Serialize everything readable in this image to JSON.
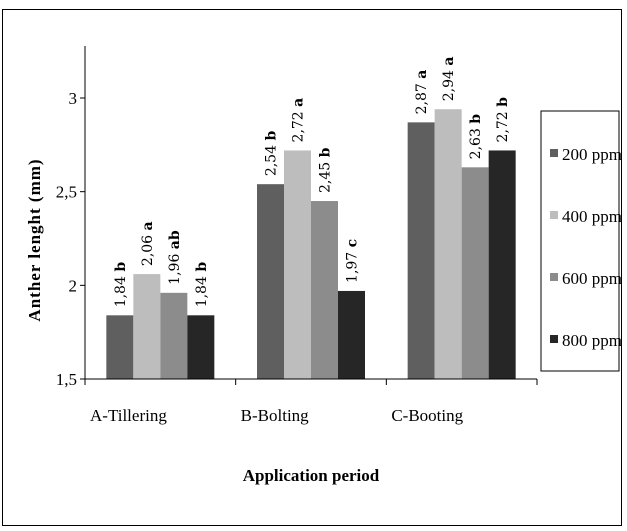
{
  "chart_data": {
    "type": "bar",
    "title": "",
    "xlabel": "Application period",
    "ylabel": "Anther lenght (mm)",
    "ylim": [
      1.5,
      3.2
    ],
    "yticks": [
      1.5,
      2,
      2.5,
      3
    ],
    "ytick_labels": [
      "1,5",
      "2",
      "2,5",
      "3"
    ],
    "grid": false,
    "legend_position": "right",
    "categories": [
      "A-Tillering",
      "B-Bolting",
      "C-Booting"
    ],
    "series": [
      {
        "name": "200 ppm",
        "color": "#5f5f5f",
        "values": [
          1.84,
          2.54,
          2.87
        ],
        "labels": [
          "1,84",
          "2,54",
          "2,87"
        ],
        "letters": [
          "b",
          "b",
          "a"
        ]
      },
      {
        "name": "400 ppm",
        "color": "#bdbdbd",
        "values": [
          2.06,
          2.72,
          2.94
        ],
        "labels": [
          "2,06",
          "2,72",
          "2,94"
        ],
        "letters": [
          "a",
          "a",
          "a"
        ]
      },
      {
        "name": "600 ppm",
        "color": "#8c8c8c",
        "values": [
          1.96,
          2.45,
          2.63
        ],
        "labels": [
          "1,96",
          "2,45",
          "2,63"
        ],
        "letters": [
          "ab",
          "b",
          "b"
        ]
      },
      {
        "name": "800 ppm",
        "color": "#262626",
        "values": [
          1.84,
          1.97,
          2.72
        ],
        "labels": [
          "1,84",
          "1,97",
          "2,72"
        ],
        "letters": [
          "b",
          "c",
          "b"
        ]
      }
    ]
  }
}
